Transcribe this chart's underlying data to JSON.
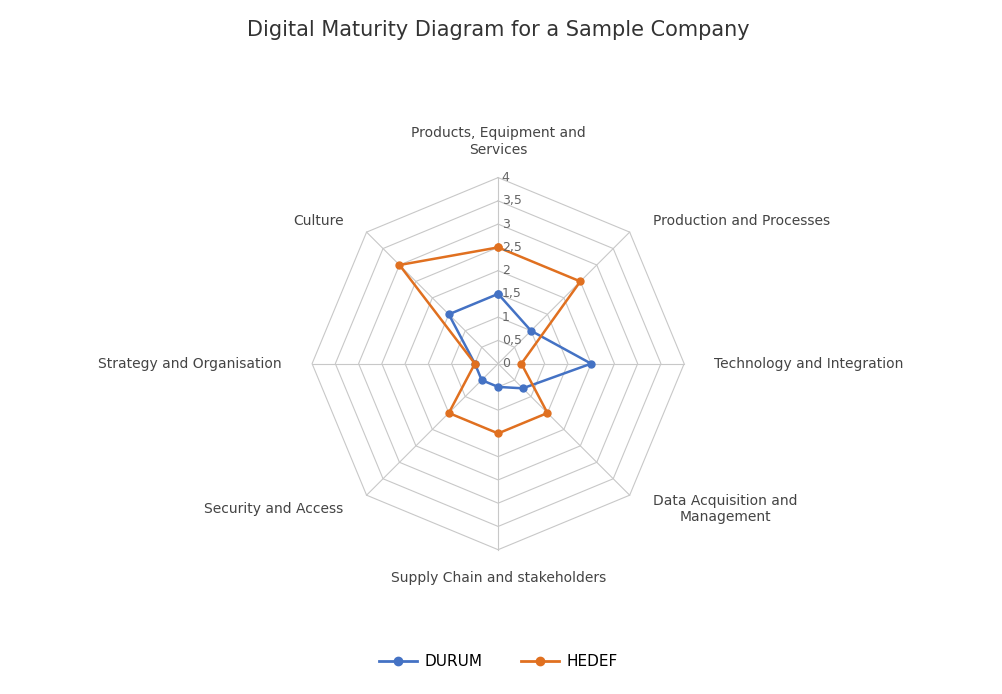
{
  "title": "Digital Maturity Diagram for a Sample Company",
  "categories": [
    "Products, Equipment and\nServices",
    "Production and Processes",
    "Technology and Integration",
    "Data Acquisition and\nManagement",
    "Supply Chain and stakeholders",
    "Security and Access",
    "Strategy and Organisation",
    "Culture"
  ],
  "durum_values": [
    1.5,
    1.0,
    2.0,
    0.75,
    0.5,
    0.5,
    0.5,
    1.5
  ],
  "hedef_values": [
    2.5,
    2.5,
    0.5,
    1.5,
    1.5,
    1.5,
    0.5,
    3.0
  ],
  "durum_color": "#4472C4",
  "hedef_color": "#E07020",
  "grid_color": "#C8C8C8",
  "background_color": "#FFFFFF",
  "r_max": 4.0,
  "r_ticks": [
    0.5,
    1.0,
    1.5,
    2.0,
    2.5,
    3.0,
    3.5,
    4.0
  ],
  "r_tick_labels": [
    "0,5",
    "1",
    "1,5",
    "2",
    "2,5",
    "3",
    "3,5",
    "4"
  ],
  "r_zero_label": "0",
  "legend_labels": [
    "DURUM",
    "HEDEF"
  ],
  "title_fontsize": 15,
  "label_fontsize": 10,
  "tick_fontsize": 9
}
